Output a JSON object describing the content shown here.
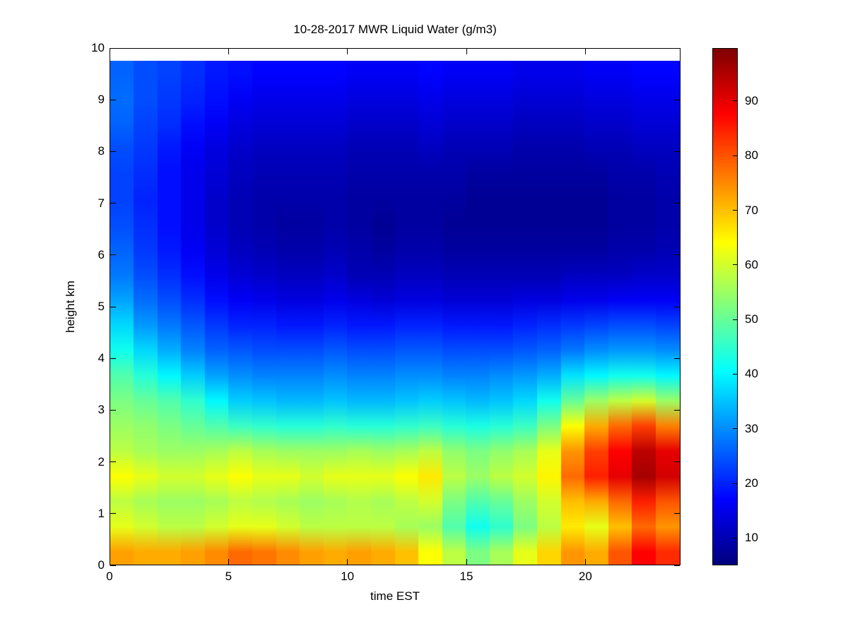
{
  "chart_data": {
    "type": "heatmap",
    "title": "10-28-2017 MWR Liquid Water (g/m3)",
    "xlabel": "time EST",
    "ylabel": "height km",
    "colormap": "jet",
    "x_range": [
      0,
      24
    ],
    "y_range": [
      0,
      10
    ],
    "data_y_range": [
      0,
      9.75
    ],
    "x_ticks": [
      0,
      5,
      10,
      15,
      20
    ],
    "y_ticks": [
      0,
      1,
      2,
      3,
      4,
      5,
      6,
      7,
      8,
      9,
      10
    ],
    "grid_on": false,
    "legend_position": "colorbar-right",
    "colorbar": {
      "min": 5,
      "max": 99.7,
      "ticks": [
        10,
        20,
        30,
        40,
        50,
        60,
        70,
        80,
        90
      ]
    },
    "x_hours": [
      0,
      1,
      2,
      3,
      4,
      5,
      6,
      7,
      8,
      9,
      10,
      11,
      12,
      13,
      14,
      15,
      16,
      17,
      18,
      19,
      20,
      21,
      22,
      23
    ],
    "row_order": "bottom-up",
    "n_rows": 20,
    "n_cols": 24,
    "grid": [
      [
        73,
        72,
        72,
        73,
        75,
        78,
        77,
        75,
        73,
        72,
        73,
        72,
        70,
        64,
        58,
        52,
        56,
        62,
        68,
        74,
        72,
        80,
        88,
        84
      ],
      [
        62,
        60,
        58,
        58,
        60,
        62,
        62,
        60,
        58,
        58,
        58,
        58,
        56,
        55,
        48,
        42,
        45,
        52,
        58,
        66,
        62,
        70,
        78,
        74
      ],
      [
        58,
        56,
        55,
        55,
        56,
        58,
        57,
        56,
        55,
        56,
        57,
        56,
        58,
        60,
        52,
        48,
        50,
        55,
        60,
        70,
        72,
        78,
        85,
        80
      ],
      [
        64,
        62,
        60,
        60,
        62,
        64,
        62,
        62,
        60,
        62,
        62,
        62,
        64,
        66,
        58,
        55,
        58,
        60,
        65,
        78,
        85,
        90,
        96,
        92
      ],
      [
        58,
        56,
        55,
        55,
        56,
        58,
        56,
        55,
        55,
        55,
        56,
        55,
        56,
        58,
        54,
        52,
        54,
        56,
        62,
        74,
        82,
        88,
        94,
        90
      ],
      [
        55,
        54,
        52,
        50,
        48,
        46,
        45,
        44,
        44,
        45,
        44,
        44,
        45,
        46,
        44,
        43,
        44,
        46,
        52,
        64,
        72,
        78,
        82,
        76
      ],
      [
        52,
        50,
        48,
        45,
        40,
        36,
        35,
        34,
        34,
        35,
        34,
        34,
        35,
        36,
        35,
        34,
        35,
        37,
        42,
        50,
        55,
        58,
        60,
        55
      ],
      [
        48,
        44,
        40,
        36,
        32,
        30,
        29,
        29,
        29,
        30,
        29,
        29,
        30,
        30,
        29,
        29,
        30,
        31,
        33,
        38,
        40,
        42,
        42,
        40
      ],
      [
        42,
        37,
        33,
        29,
        26,
        25,
        24,
        24,
        24,
        25,
        24,
        24,
        25,
        25,
        24,
        24,
        24,
        25,
        26,
        28,
        30,
        31,
        31,
        30
      ],
      [
        37,
        31,
        28,
        25,
        22,
        20,
        20,
        19,
        19,
        20,
        19,
        19,
        20,
        20,
        19,
        19,
        19,
        20,
        21,
        22,
        23,
        24,
        24,
        23
      ],
      [
        32,
        27,
        24,
        21,
        18,
        16,
        15,
        14,
        14,
        15,
        14,
        13,
        14,
        14,
        13,
        13,
        13,
        14,
        14,
        15,
        15,
        16,
        16,
        16
      ],
      [
        28,
        24,
        21,
        18,
        15,
        13,
        12,
        11,
        11,
        12,
        10,
        10,
        11,
        11,
        10,
        10,
        10,
        10,
        10,
        11,
        11,
        11,
        12,
        12
      ],
      [
        26,
        22,
        19,
        16,
        13,
        11,
        10,
        9,
        9,
        10,
        9,
        8,
        9,
        9,
        8,
        8,
        8,
        8,
        8,
        8,
        8,
        9,
        9,
        10
      ],
      [
        24,
        21,
        18,
        15,
        12,
        10,
        9,
        8,
        8,
        9,
        8,
        7,
        8,
        8,
        7,
        7,
        7,
        7,
        7,
        7,
        7,
        8,
        8,
        9
      ],
      [
        23,
        20,
        18,
        15,
        12,
        10,
        9,
        9,
        9,
        9,
        8,
        8,
        8,
        8,
        8,
        7,
        7,
        7,
        7,
        7,
        7,
        8,
        8,
        9
      ],
      [
        23,
        21,
        18,
        15,
        13,
        11,
        10,
        10,
        10,
        10,
        9,
        9,
        9,
        9,
        9,
        8,
        8,
        8,
        8,
        8,
        8,
        9,
        9,
        10
      ],
      [
        24,
        22,
        19,
        16,
        14,
        12,
        11,
        11,
        11,
        11,
        10,
        10,
        10,
        11,
        10,
        10,
        10,
        9,
        9,
        9,
        10,
        10,
        11,
        11
      ],
      [
        26,
        23,
        21,
        18,
        16,
        14,
        13,
        13,
        13,
        13,
        12,
        12,
        12,
        13,
        12,
        12,
        12,
        11,
        11,
        11,
        12,
        12,
        13,
        13
      ],
      [
        27,
        24,
        22,
        20,
        18,
        16,
        15,
        15,
        15,
        15,
        14,
        14,
        14,
        15,
        14,
        14,
        14,
        13,
        13,
        13,
        14,
        14,
        15,
        15
      ],
      [
        26,
        24,
        23,
        21,
        19,
        18,
        17,
        17,
        17,
        17,
        16,
        16,
        16,
        17,
        16,
        16,
        16,
        15,
        15,
        15,
        16,
        16,
        17,
        17
      ]
    ]
  }
}
